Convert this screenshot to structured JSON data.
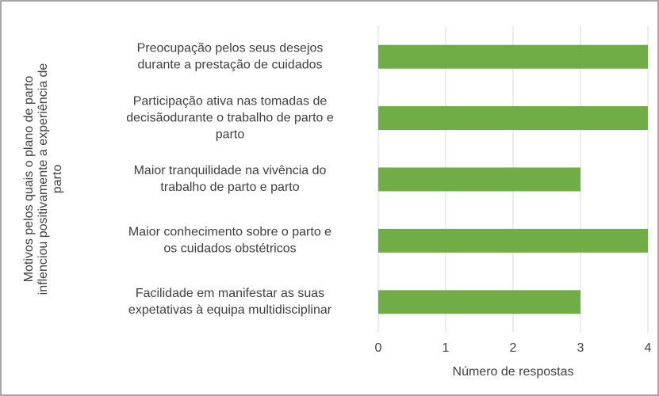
{
  "chart_data": {
    "type": "bar",
    "orientation": "horizontal",
    "y_label": [
      "Motivos pelos quais o plano de parto",
      "inflenciou positivamente a experiência de",
      "parto"
    ],
    "x_label": "Número de respostas",
    "categories": [
      [
        "Preocupação pelos seus desejos",
        "durante a prestação de cuidados"
      ],
      [
        "Participação ativa nas tomadas de",
        "decisãodurante o trabalho de parto e",
        "parto"
      ],
      [
        "Maior tranquilidade na vivência do",
        "trabalho de parto e parto"
      ],
      [
        "Maior conhecimento sobre o parto e",
        "os cuidados obstétricos"
      ],
      [
        "Facilidade em manifestar as suas",
        "expetativas à equipa multidisciplinar"
      ]
    ],
    "values": [
      4,
      4,
      3,
      4,
      3
    ],
    "color": "#70ad47",
    "xlim": [
      0,
      4
    ],
    "xticks": [
      0,
      1,
      2,
      3,
      4
    ],
    "grid": true
  }
}
